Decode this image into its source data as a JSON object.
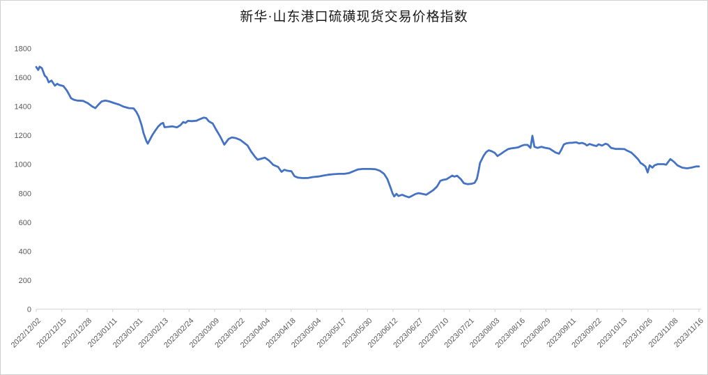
{
  "window": {
    "background": "#ffffff",
    "border_color": "#d0d0d0"
  },
  "chart": {
    "title": "新华·山东港口硫磺现货交易价格指数",
    "title_color": "#1a1a1a",
    "line_color": "#4472c4",
    "axis_color": "#d9d9d9",
    "tick_label_color": "#595959"
  },
  "chart_data": {
    "type": "line",
    "title": "新华·山东港口硫磺现货交易价格指数",
    "xlabel": "",
    "ylabel": "",
    "ylim": [
      0,
      1800
    ],
    "y_ticks": [
      0,
      200,
      400,
      600,
      800,
      1000,
      1200,
      1400,
      1600,
      1800
    ],
    "grid": false,
    "legend_position": "none",
    "x_axis_type": "category-dates",
    "x_tick_interval_categories": 9,
    "x_range_day_index": [
      0,
      234
    ],
    "x_tick_labels": [
      "2022/12/02",
      "2022/12/15",
      "2022/12/28",
      "2023/01/11",
      "2023/01/31",
      "2023/02/13",
      "2023/02/24",
      "2023/03/09",
      "2023/03/22",
      "2023/04/04",
      "2023/04/18",
      "2023/05/04",
      "2023/05/17",
      "2023/05/30",
      "2023/06/12",
      "2023/06/27",
      "2023/07/10",
      "2023/07/21",
      "2023/08/03",
      "2023/08/16",
      "2023/08/29",
      "2023/09/11",
      "2023/09/22",
      "2023/10/13",
      "2023/10/26",
      "2023/11/08",
      "2023/11/16"
    ],
    "series": [
      {
        "name": "硫磺现货交易价格指数",
        "color": "#4472c4",
        "points": [
          [
            0,
            1672
          ],
          [
            0.7,
            1652
          ],
          [
            1.2,
            1674
          ],
          [
            2,
            1664
          ],
          [
            3,
            1612
          ],
          [
            3.7,
            1600
          ],
          [
            4.4,
            1566
          ],
          [
            5.4,
            1578
          ],
          [
            6.6,
            1543
          ],
          [
            7.4,
            1556
          ],
          [
            8.1,
            1548
          ],
          [
            9.6,
            1540
          ],
          [
            10.8,
            1510
          ],
          [
            11.6,
            1482
          ],
          [
            12.3,
            1456
          ],
          [
            13.3,
            1446
          ],
          [
            14.5,
            1440
          ],
          [
            16.5,
            1438
          ],
          [
            18.2,
            1422
          ],
          [
            19.7,
            1400
          ],
          [
            20.9,
            1388
          ],
          [
            22.1,
            1415
          ],
          [
            23.1,
            1434
          ],
          [
            24.4,
            1440
          ],
          [
            25.8,
            1434
          ],
          [
            27.6,
            1422
          ],
          [
            29.3,
            1412
          ],
          [
            30.8,
            1398
          ],
          [
            32.7,
            1388
          ],
          [
            34.4,
            1386
          ],
          [
            35.4,
            1360
          ],
          [
            36.2,
            1330
          ],
          [
            37.2,
            1270
          ],
          [
            37.9,
            1215
          ],
          [
            38.9,
            1160
          ],
          [
            39.4,
            1143
          ],
          [
            40.4,
            1180
          ],
          [
            41.1,
            1205
          ],
          [
            42.1,
            1235
          ],
          [
            43.1,
            1262
          ],
          [
            44.1,
            1280
          ],
          [
            44.8,
            1286
          ],
          [
            45.3,
            1256
          ],
          [
            46.3,
            1258
          ],
          [
            48,
            1262
          ],
          [
            49.7,
            1255
          ],
          [
            50.9,
            1270
          ],
          [
            51.9,
            1292
          ],
          [
            52.7,
            1286
          ],
          [
            53.6,
            1300
          ],
          [
            54.9,
            1298
          ],
          [
            56.6,
            1301
          ],
          [
            57.8,
            1312
          ],
          [
            59.1,
            1322
          ],
          [
            60,
            1319
          ],
          [
            61,
            1296
          ],
          [
            62.3,
            1282
          ],
          [
            63.5,
            1240
          ],
          [
            65,
            1190
          ],
          [
            66.4,
            1136
          ],
          [
            67.9,
            1175
          ],
          [
            69.1,
            1186
          ],
          [
            70.6,
            1180
          ],
          [
            72.1,
            1168
          ],
          [
            73.3,
            1150
          ],
          [
            74.6,
            1130
          ],
          [
            75.8,
            1090
          ],
          [
            77.3,
            1050
          ],
          [
            78.2,
            1032
          ],
          [
            79.7,
            1040
          ],
          [
            80.7,
            1046
          ],
          [
            82.2,
            1026
          ],
          [
            83.7,
            996
          ],
          [
            85.4,
            982
          ],
          [
            86.6,
            948
          ],
          [
            87.6,
            962
          ],
          [
            88.6,
            956
          ],
          [
            90.1,
            952
          ],
          [
            91.2,
            918
          ],
          [
            92.4,
            908
          ],
          [
            94.2,
            905
          ],
          [
            96,
            906
          ],
          [
            97.7,
            912
          ],
          [
            99.7,
            916
          ],
          [
            101.4,
            922
          ],
          [
            103.1,
            928
          ],
          [
            105.1,
            932
          ],
          [
            107,
            934
          ],
          [
            108.8,
            934
          ],
          [
            110.5,
            940
          ],
          [
            112,
            952
          ],
          [
            113.5,
            964
          ],
          [
            115.2,
            968
          ],
          [
            117.9,
            968
          ],
          [
            119.8,
            966
          ],
          [
            121.3,
            956
          ],
          [
            122.8,
            934
          ],
          [
            124,
            898
          ],
          [
            125,
            845
          ],
          [
            125.8,
            800
          ],
          [
            126.4,
            778
          ],
          [
            127.2,
            796
          ],
          [
            127.9,
            781
          ],
          [
            129.2,
            790
          ],
          [
            130.4,
            780
          ],
          [
            131.6,
            772
          ],
          [
            132.6,
            781
          ],
          [
            133.9,
            795
          ],
          [
            135,
            801
          ],
          [
            136.5,
            795
          ],
          [
            137.7,
            790
          ],
          [
            139,
            806
          ],
          [
            140.2,
            822
          ],
          [
            141.5,
            846
          ],
          [
            142.7,
            886
          ],
          [
            143.7,
            893
          ],
          [
            144.9,
            897
          ],
          [
            146.1,
            912
          ],
          [
            146.9,
            922
          ],
          [
            147.6,
            915
          ],
          [
            148.6,
            921
          ],
          [
            149.9,
            898
          ],
          [
            151,
            869
          ],
          [
            152.3,
            863
          ],
          [
            153.8,
            866
          ],
          [
            154.8,
            872
          ],
          [
            155.6,
            900
          ],
          [
            156.2,
            955
          ],
          [
            156.7,
            1009
          ],
          [
            158,
            1060
          ],
          [
            158.9,
            1085
          ],
          [
            159.8,
            1097
          ],
          [
            160.8,
            1090
          ],
          [
            161.9,
            1079
          ],
          [
            162.9,
            1057
          ],
          [
            164.1,
            1073
          ],
          [
            165.4,
            1090
          ],
          [
            166.6,
            1105
          ],
          [
            167.7,
            1110
          ],
          [
            169,
            1113
          ],
          [
            170.3,
            1118
          ],
          [
            171.5,
            1129
          ],
          [
            172.3,
            1134
          ],
          [
            173.5,
            1134
          ],
          [
            174.5,
            1113
          ],
          [
            175.2,
            1197
          ],
          [
            175.9,
            1121
          ],
          [
            177,
            1113
          ],
          [
            178.4,
            1121
          ],
          [
            179.6,
            1114
          ],
          [
            181.3,
            1108
          ],
          [
            183.3,
            1082
          ],
          [
            184.6,
            1073
          ],
          [
            185.3,
            1097
          ],
          [
            186.3,
            1137
          ],
          [
            187.2,
            1145
          ],
          [
            188.2,
            1148
          ],
          [
            189.4,
            1149
          ],
          [
            190.6,
            1152
          ],
          [
            191.7,
            1144
          ],
          [
            192.7,
            1148
          ],
          [
            193.7,
            1141
          ],
          [
            194.4,
            1130
          ],
          [
            195.4,
            1140
          ],
          [
            196.8,
            1131
          ],
          [
            197.8,
            1126
          ],
          [
            198.6,
            1138
          ],
          [
            199.8,
            1129
          ],
          [
            201,
            1142
          ],
          [
            201.8,
            1137
          ],
          [
            203,
            1113
          ],
          [
            204.7,
            1106
          ],
          [
            206.2,
            1106
          ],
          [
            207.7,
            1105
          ],
          [
            208.4,
            1097
          ],
          [
            210.1,
            1081
          ],
          [
            211.4,
            1057
          ],
          [
            212.6,
            1033
          ],
          [
            213.4,
            1009
          ],
          [
            214.1,
            1001
          ],
          [
            215.1,
            985
          ],
          [
            215.9,
            944
          ],
          [
            216.6,
            993
          ],
          [
            217.6,
            977
          ],
          [
            218.3,
            993
          ],
          [
            219.5,
            1001
          ],
          [
            221.5,
            1001
          ],
          [
            222.4,
            997
          ],
          [
            223.9,
            1036
          ],
          [
            225.2,
            1017
          ],
          [
            226.4,
            993
          ],
          [
            228.1,
            977
          ],
          [
            229.8,
            972
          ],
          [
            231.3,
            977
          ],
          [
            233,
            985
          ],
          [
            234,
            985
          ]
        ]
      }
    ]
  }
}
